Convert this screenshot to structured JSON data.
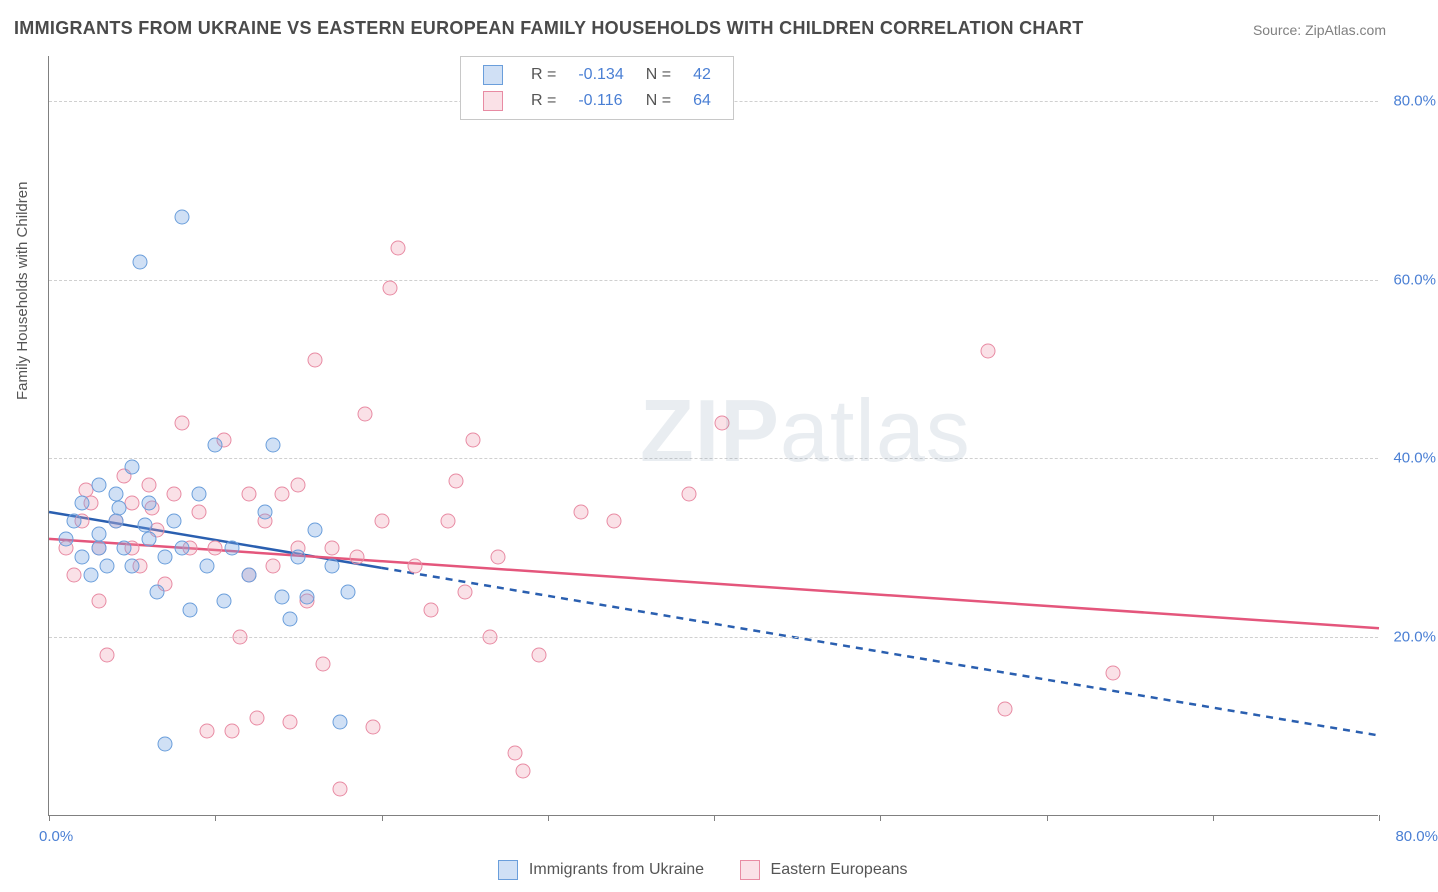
{
  "title": "IMMIGRANTS FROM UKRAINE VS EASTERN EUROPEAN FAMILY HOUSEHOLDS WITH CHILDREN CORRELATION CHART",
  "source": "Source: ZipAtlas.com",
  "ylabel": "Family Households with Children",
  "watermark_bold": "ZIP",
  "watermark_rest": "atlas",
  "chart": {
    "type": "scatter-with-regression",
    "xlim": [
      0,
      80
    ],
    "ylim": [
      0,
      85
    ],
    "x_tick_positions": [
      0,
      10,
      20,
      30,
      40,
      50,
      60,
      70,
      80
    ],
    "x_origin_label": "0.0%",
    "x_max_label": "80.0%",
    "y_gridlines": [
      20,
      40,
      60,
      80
    ],
    "y_labels": [
      "20.0%",
      "40.0%",
      "60.0%",
      "80.0%"
    ],
    "grid_color": "#d0d0d0",
    "axis_color": "#808080",
    "tick_label_color": "#4a7fd4",
    "background_color": "#ffffff",
    "series": [
      {
        "name": "Immigrants from Ukraine",
        "fill_color": "rgba(120,165,225,0.35)",
        "stroke_color": "#6a9edb",
        "line_color": "#2a5fb0",
        "line_solid_xrange": [
          0,
          20
        ],
        "line_dash_xrange": [
          20,
          80
        ],
        "regression": {
          "y_at_x0": 34,
          "y_at_xmax": 9
        },
        "R": "-0.134",
        "N": "42",
        "points": [
          [
            1.0,
            31
          ],
          [
            1.5,
            33
          ],
          [
            2.0,
            29
          ],
          [
            2.0,
            35
          ],
          [
            2.5,
            27
          ],
          [
            3.0,
            30
          ],
          [
            3.0,
            37
          ],
          [
            3.5,
            28
          ],
          [
            4.0,
            33
          ],
          [
            4.0,
            36
          ],
          [
            4.5,
            30
          ],
          [
            5.0,
            28
          ],
          [
            5.0,
            39
          ],
          [
            5.5,
            62
          ],
          [
            6.0,
            31
          ],
          [
            6.0,
            35
          ],
          [
            6.5,
            25
          ],
          [
            7.0,
            29
          ],
          [
            7.0,
            8
          ],
          [
            7.5,
            33
          ],
          [
            8.0,
            67
          ],
          [
            8.0,
            30
          ],
          [
            8.5,
            23
          ],
          [
            9.0,
            36
          ],
          [
            9.5,
            28
          ],
          [
            10.0,
            41.5
          ],
          [
            10.5,
            24
          ],
          [
            11.0,
            30
          ],
          [
            12.0,
            27
          ],
          [
            13.0,
            34
          ],
          [
            13.5,
            41.5
          ],
          [
            14.0,
            24.5
          ],
          [
            14.5,
            22
          ],
          [
            15.0,
            29
          ],
          [
            15.5,
            24.5
          ],
          [
            16.0,
            32
          ],
          [
            17.0,
            28
          ],
          [
            17.5,
            10.5
          ],
          [
            18.0,
            25
          ],
          [
            3.0,
            31.5
          ],
          [
            4.2,
            34.5
          ],
          [
            5.8,
            32.5
          ]
        ]
      },
      {
        "name": "Eastern Europeans",
        "fill_color": "rgba(240,155,175,0.30)",
        "stroke_color": "#e88ba3",
        "line_color": "#e4567c",
        "line_solid_xrange": [
          0,
          80
        ],
        "line_dash_xrange": null,
        "regression": {
          "y_at_x0": 31,
          "y_at_xmax": 21
        },
        "R": "-0.116",
        "N": "64",
        "points": [
          [
            1.0,
            30
          ],
          [
            1.5,
            27
          ],
          [
            2.0,
            33
          ],
          [
            2.5,
            35
          ],
          [
            3.0,
            30
          ],
          [
            3.0,
            24
          ],
          [
            3.5,
            18
          ],
          [
            4.0,
            33
          ],
          [
            4.5,
            38
          ],
          [
            5.0,
            30
          ],
          [
            5.0,
            35
          ],
          [
            5.5,
            28
          ],
          [
            6.0,
            37
          ],
          [
            6.5,
            32
          ],
          [
            7.0,
            26
          ],
          [
            7.5,
            36
          ],
          [
            8.0,
            44
          ],
          [
            8.5,
            30
          ],
          [
            9.0,
            34
          ],
          [
            9.5,
            9.5
          ],
          [
            10.0,
            30
          ],
          [
            10.5,
            42
          ],
          [
            11.0,
            9.5
          ],
          [
            11.5,
            20
          ],
          [
            12.0,
            36
          ],
          [
            12.0,
            27
          ],
          [
            12.5,
            11
          ],
          [
            13.0,
            33
          ],
          [
            13.5,
            28
          ],
          [
            14.0,
            36
          ],
          [
            14.5,
            10.5
          ],
          [
            15.0,
            30
          ],
          [
            15.0,
            37
          ],
          [
            15.5,
            24
          ],
          [
            16.0,
            51
          ],
          [
            16.5,
            17
          ],
          [
            17.0,
            30
          ],
          [
            17.5,
            3
          ],
          [
            18.5,
            29
          ],
          [
            19.0,
            45
          ],
          [
            19.5,
            10
          ],
          [
            20.0,
            33
          ],
          [
            20.5,
            59
          ],
          [
            21.0,
            63.5
          ],
          [
            22.0,
            28
          ],
          [
            23.0,
            23
          ],
          [
            24.0,
            33
          ],
          [
            24.5,
            37.5
          ],
          [
            25.5,
            42
          ],
          [
            25.0,
            25
          ],
          [
            26.5,
            20
          ],
          [
            27.0,
            29
          ],
          [
            28.0,
            7
          ],
          [
            28.5,
            5
          ],
          [
            29.5,
            18
          ],
          [
            32.0,
            34
          ],
          [
            34.0,
            33
          ],
          [
            38.5,
            36
          ],
          [
            40.5,
            44
          ],
          [
            56.5,
            52
          ],
          [
            57.5,
            12
          ],
          [
            64.0,
            16
          ],
          [
            2.2,
            36.5
          ],
          [
            6.2,
            34.5
          ]
        ]
      }
    ],
    "legend_top": {
      "r_label": "R =",
      "n_label": "N ="
    },
    "legend_bottom_labels": [
      "Immigrants from Ukraine",
      "Eastern Europeans"
    ]
  }
}
